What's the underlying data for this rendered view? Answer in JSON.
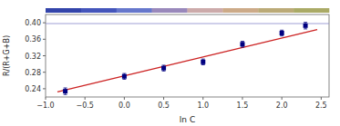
{
  "chart_data": {
    "type": "scatter",
    "xlabel": "ln C",
    "ylabel": "R/(R+G+B)",
    "xlim": [
      -1.0,
      2.6
    ],
    "ylim": [
      0.22,
      0.42
    ],
    "xticks": [
      {
        "value": -1.0,
        "label": "−1.0"
      },
      {
        "value": -0.5,
        "label": "−0.5"
      },
      {
        "value": 0.0,
        "label": "0.0"
      },
      0.5,
      {
        "value": 1.0,
        "label": "1.0"
      },
      1.5,
      {
        "value": 2.0,
        "label": "2.0"
      },
      2.5
    ],
    "yticks": [
      0.24,
      0.28,
      0.32,
      0.36,
      {
        "value": 0.4,
        "label": "0.40"
      }
    ],
    "grid": false,
    "color_strip": [
      "#3344aa",
      "#4455bb",
      "#6677cc",
      "#9988bb",
      "#ccaaaa",
      "#ccaa88",
      "#bbaa77",
      "#aaaa66"
    ],
    "series": [
      {
        "type": "scatter",
        "marker": "square",
        "color": "#000080",
        "x": [
          -0.75,
          0.0,
          0.5,
          1.0,
          1.5,
          2.0,
          2.3
        ],
        "values": [
          0.234,
          0.27,
          0.29,
          0.305,
          0.348,
          0.375,
          0.393
        ],
        "errors": [
          0.008,
          0.007,
          0.007,
          0.007,
          0.007,
          0.007,
          0.008
        ]
      },
      {
        "type": "line",
        "color": "#cc2222",
        "x": [
          -0.85,
          2.45
        ],
        "values": [
          0.23257,
          0.38371
        ]
      },
      {
        "type": "hline",
        "color": "#8888cc",
        "values": [
          0.398
        ]
      }
    ]
  }
}
